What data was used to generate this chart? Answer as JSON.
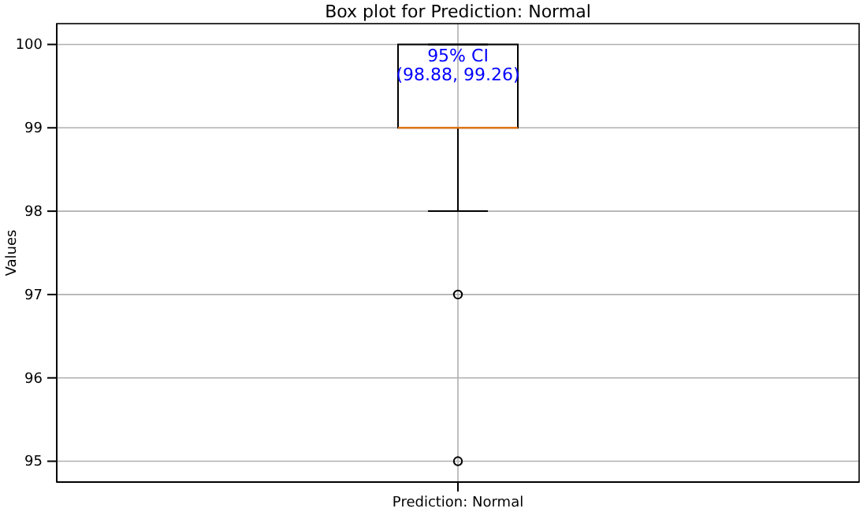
{
  "chart_data": {
    "type": "box",
    "title": "Box plot for Prediction: Normal",
    "ylabel": "Values",
    "categories": [
      "Prediction: Normal"
    ],
    "boxes": [
      {
        "low": 98,
        "q1": 99,
        "median": 99,
        "q3": 100,
        "high": 100,
        "outliers": [
          97,
          95
        ]
      }
    ],
    "ylim": [
      94.75,
      100.25
    ],
    "yticks": [
      95,
      96,
      97,
      98,
      99,
      100
    ],
    "grid": true,
    "annotations": [
      {
        "text": "95% CI\n(98.88, 99.26)",
        "x": "Prediction: Normal",
        "y": 100
      }
    ]
  }
}
